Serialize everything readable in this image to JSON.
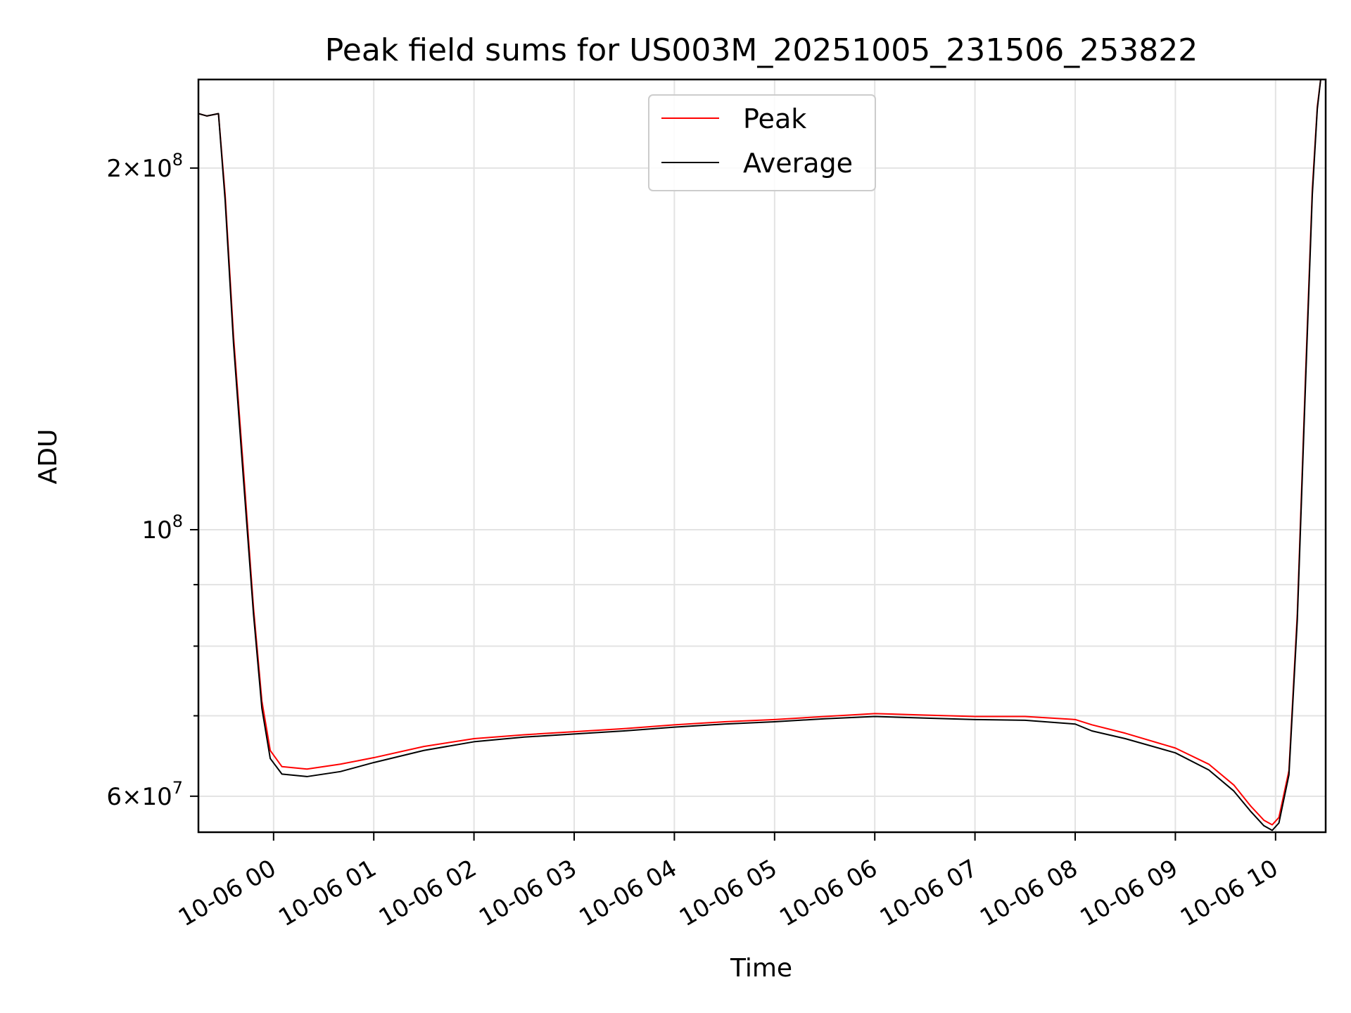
{
  "chart_data": {
    "type": "line",
    "title": "Peak field sums for US003M_20251005_231506_253822",
    "xlabel": "Time",
    "ylabel": "ADU",
    "y_scale": "log",
    "ylim": [
      56000000,
      237000000
    ],
    "xlim": [
      "2025-10-05 23:15",
      "2025-10-06 10:30"
    ],
    "grid": true,
    "legend_position": "upper center",
    "x_ticks": [
      {
        "value": "2025-10-06 00:00",
        "label": "10-06 00"
      },
      {
        "value": "2025-10-06 01:00",
        "label": "10-06 01"
      },
      {
        "value": "2025-10-06 02:00",
        "label": "10-06 02"
      },
      {
        "value": "2025-10-06 03:00",
        "label": "10-06 03"
      },
      {
        "value": "2025-10-06 04:00",
        "label": "10-06 04"
      },
      {
        "value": "2025-10-06 05:00",
        "label": "10-06 05"
      },
      {
        "value": "2025-10-06 06:00",
        "label": "10-06 06"
      },
      {
        "value": "2025-10-06 07:00",
        "label": "10-06 07"
      },
      {
        "value": "2025-10-06 08:00",
        "label": "10-06 08"
      },
      {
        "value": "2025-10-06 09:00",
        "label": "10-06 09"
      },
      {
        "value": "2025-10-06 10:00",
        "label": "10-06 10"
      }
    ],
    "y_major_ticks": [
      {
        "value": 60000000,
        "mantissa": "6",
        "exponent": "7"
      },
      {
        "value": 100000000,
        "mantissa": "",
        "exponent": "8"
      },
      {
        "value": 200000000,
        "mantissa": "2",
        "exponent": "8"
      }
    ],
    "y_minor_ticks": [
      70000000,
      80000000,
      90000000
    ],
    "series": [
      {
        "name": "Peak",
        "color": "#ff0000",
        "points": [
          [
            "2025-10-05 23:15",
            222000000
          ],
          [
            "2025-10-05 23:20",
            221000000
          ],
          [
            "2025-10-05 23:27",
            222000000
          ],
          [
            "2025-10-05 23:31",
            190000000
          ],
          [
            "2025-10-05 23:36",
            145000000
          ],
          [
            "2025-10-05 23:42",
            112000000
          ],
          [
            "2025-10-05 23:48",
            86000000
          ],
          [
            "2025-10-05 23:53",
            72000000
          ],
          [
            "2025-10-05 23:58",
            65500000
          ],
          [
            "2025-10-06 00:05",
            63500000
          ],
          [
            "2025-10-06 00:20",
            63200000
          ],
          [
            "2025-10-06 00:40",
            63800000
          ],
          [
            "2025-10-06 01:00",
            64600000
          ],
          [
            "2025-10-06 01:30",
            66000000
          ],
          [
            "2025-10-06 02:00",
            67000000
          ],
          [
            "2025-10-06 02:30",
            67500000
          ],
          [
            "2025-10-06 03:00",
            67900000
          ],
          [
            "2025-10-06 03:30",
            68300000
          ],
          [
            "2025-10-06 04:00",
            68800000
          ],
          [
            "2025-10-06 04:30",
            69200000
          ],
          [
            "2025-10-06 05:00",
            69500000
          ],
          [
            "2025-10-06 05:30",
            69900000
          ],
          [
            "2025-10-06 06:00",
            70300000
          ],
          [
            "2025-10-06 06:30",
            70100000
          ],
          [
            "2025-10-06 07:00",
            69900000
          ],
          [
            "2025-10-06 07:30",
            69900000
          ],
          [
            "2025-10-06 08:00",
            69500000
          ],
          [
            "2025-10-06 08:10",
            68800000
          ],
          [
            "2025-10-06 08:30",
            67700000
          ],
          [
            "2025-10-06 09:00",
            65800000
          ],
          [
            "2025-10-06 09:20",
            63800000
          ],
          [
            "2025-10-06 09:35",
            61300000
          ],
          [
            "2025-10-06 09:45",
            58900000
          ],
          [
            "2025-10-06 09:53",
            57300000
          ],
          [
            "2025-10-06 09:58",
            56800000
          ],
          [
            "2025-10-06 10:02",
            57600000
          ],
          [
            "2025-10-06 10:08",
            63000000
          ],
          [
            "2025-10-06 10:13",
            85000000
          ],
          [
            "2025-10-06 10:18",
            135000000
          ],
          [
            "2025-10-06 10:22",
            192000000
          ],
          [
            "2025-10-06 10:25",
            225000000
          ],
          [
            "2025-10-06 10:27",
            237000000
          ],
          [
            "2025-10-06 10:30",
            237000000
          ]
        ]
      },
      {
        "name": "Average",
        "color": "#000000",
        "points": [
          [
            "2025-10-05 23:15",
            222000000
          ],
          [
            "2025-10-05 23:20",
            221000000
          ],
          [
            "2025-10-05 23:27",
            222000000
          ],
          [
            "2025-10-05 23:31",
            188000000
          ],
          [
            "2025-10-05 23:36",
            143000000
          ],
          [
            "2025-10-05 23:42",
            110000000
          ],
          [
            "2025-10-05 23:48",
            85000000
          ],
          [
            "2025-10-05 23:53",
            71000000
          ],
          [
            "2025-10-05 23:58",
            64500000
          ],
          [
            "2025-10-06 00:05",
            62600000
          ],
          [
            "2025-10-06 00:20",
            62300000
          ],
          [
            "2025-10-06 00:40",
            62900000
          ],
          [
            "2025-10-06 01:00",
            64000000
          ],
          [
            "2025-10-06 01:30",
            65500000
          ],
          [
            "2025-10-06 02:00",
            66600000
          ],
          [
            "2025-10-06 02:30",
            67200000
          ],
          [
            "2025-10-06 03:00",
            67600000
          ],
          [
            "2025-10-06 03:30",
            68000000
          ],
          [
            "2025-10-06 04:00",
            68500000
          ],
          [
            "2025-10-06 04:30",
            68900000
          ],
          [
            "2025-10-06 05:00",
            69200000
          ],
          [
            "2025-10-06 05:30",
            69600000
          ],
          [
            "2025-10-06 06:00",
            69900000
          ],
          [
            "2025-10-06 06:30",
            69700000
          ],
          [
            "2025-10-06 07:00",
            69500000
          ],
          [
            "2025-10-06 07:30",
            69400000
          ],
          [
            "2025-10-06 08:00",
            68900000
          ],
          [
            "2025-10-06 08:10",
            68000000
          ],
          [
            "2025-10-06 08:30",
            67000000
          ],
          [
            "2025-10-06 09:00",
            65200000
          ],
          [
            "2025-10-06 09:20",
            63100000
          ],
          [
            "2025-10-06 09:35",
            60600000
          ],
          [
            "2025-10-06 09:45",
            58300000
          ],
          [
            "2025-10-06 09:53",
            56700000
          ],
          [
            "2025-10-06 09:58",
            56200000
          ],
          [
            "2025-10-06 10:02",
            57000000
          ],
          [
            "2025-10-06 10:08",
            62500000
          ],
          [
            "2025-10-06 10:13",
            84000000
          ],
          [
            "2025-10-06 10:18",
            133000000
          ],
          [
            "2025-10-06 10:22",
            190000000
          ],
          [
            "2025-10-06 10:25",
            224000000
          ],
          [
            "2025-10-06 10:27",
            237000000
          ],
          [
            "2025-10-06 10:30",
            237000000
          ]
        ]
      }
    ]
  }
}
